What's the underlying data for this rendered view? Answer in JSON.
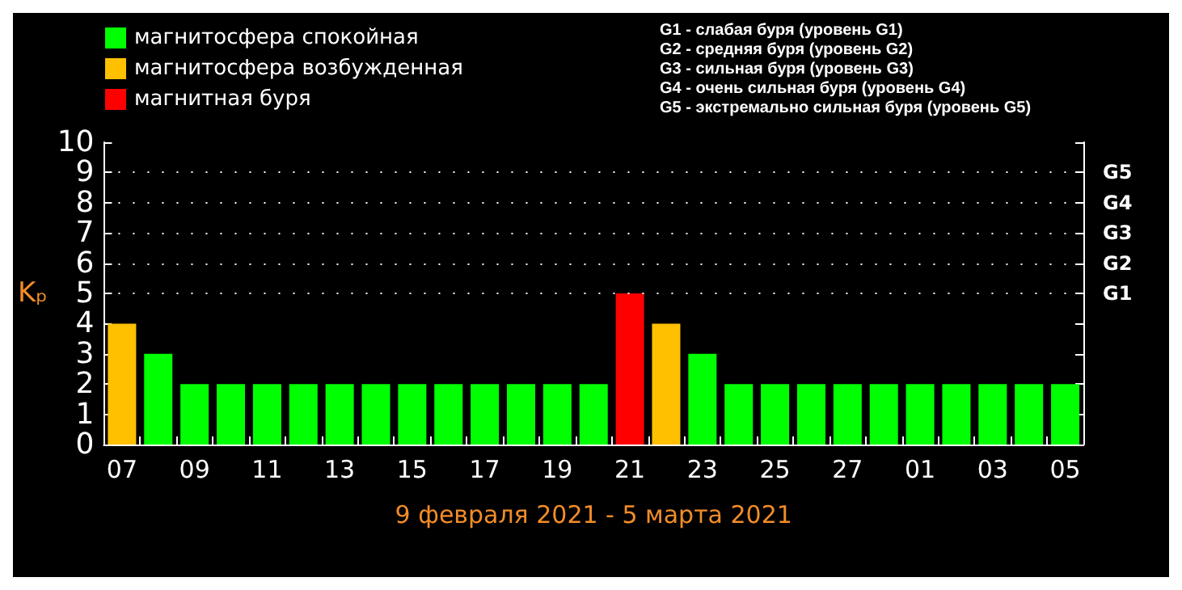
{
  "chart_data": {
    "type": "bar",
    "stacked": true,
    "xlabel": "9 февраля 2021 - 5 марта 2021",
    "ylabel": "Kₚ",
    "categories": [
      "07",
      null,
      "09",
      null,
      "11",
      null,
      "13",
      null,
      "15",
      null,
      "17",
      null,
      "19",
      null,
      "21",
      null,
      "23",
      null,
      "25",
      null,
      "27",
      null,
      "01",
      null,
      "03",
      null,
      "05"
    ],
    "series": [
      {
        "name": "магнитосфера спокойная",
        "color": "#00ff00",
        "values": [
          null,
          3,
          2,
          2,
          2,
          2,
          2,
          2,
          2,
          2,
          2,
          2,
          2,
          2,
          null,
          null,
          3,
          2,
          2,
          2,
          2,
          2,
          2,
          2,
          2,
          2,
          2
        ]
      },
      {
        "name": "магнитосфера возбужденная",
        "color": "#ffc000",
        "values": [
          4,
          null,
          null,
          null,
          null,
          null,
          null,
          null,
          null,
          null,
          null,
          null,
          null,
          null,
          null,
          4,
          null,
          null,
          null,
          null,
          null,
          null,
          null,
          null,
          null,
          null,
          null
        ]
      },
      {
        "name": "магнитная буря",
        "color": "#ff0000",
        "values": [
          null,
          null,
          null,
          null,
          null,
          null,
          null,
          null,
          null,
          null,
          null,
          null,
          null,
          null,
          5,
          null,
          null,
          null,
          null,
          null,
          null,
          null,
          null,
          null,
          null,
          null,
          null
        ]
      }
    ],
    "ylim": [
      0,
      10
    ],
    "yticks": [
      0,
      1,
      2,
      3,
      4,
      5,
      6,
      7,
      8,
      9,
      10
    ],
    "ref_lines": [
      {
        "axis": "y",
        "value": 5,
        "label": "G1",
        "color": "#ffffff",
        "line_style": "dotted"
      },
      {
        "axis": "y",
        "value": 6,
        "label": "G2",
        "color": "#ffffff",
        "line_style": "dotted"
      },
      {
        "axis": "y",
        "value": 7,
        "label": "G3",
        "color": "#ffffff",
        "line_style": "dotted"
      },
      {
        "axis": "y",
        "value": 8,
        "label": "G4",
        "color": "#ffffff",
        "line_style": "dotted"
      },
      {
        "axis": "y",
        "value": 9,
        "label": "G5",
        "color": "#ffffff",
        "line_style": "dotted"
      }
    ],
    "legend": "top left",
    "annotations": [
      "G1 - слабая буря (уровень G1)",
      "G2 - средняя буря (уровень G2)",
      "G3 - сильная буря (уровень G3)",
      "G4 - очень сильная буря (уровень G4)",
      "G5 - экстремально сильная буря (уровень G5)"
    ]
  }
}
